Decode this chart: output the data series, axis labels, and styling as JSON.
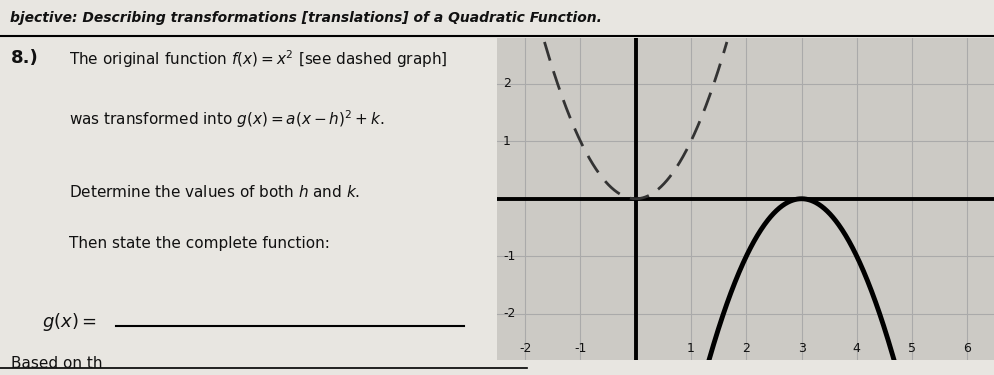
{
  "title_text": "bjective: Describing transformations [translations] of a Quadratic Function.",
  "problem_number": "8.)",
  "line1": "The original function $f(x) = x^2$ [see dashed graph]",
  "line2": "was transformed into $g(x) = a(x - h)^2 + k$.",
  "line3": "Determine the values of both $h$ and $k$.",
  "line4": "Then state the complete function:",
  "gx_label": "$g(x) =$",
  "paper_color": "#e8e6e1",
  "grid_bg": "#cccac5",
  "x_min": -2.5,
  "x_max": 6.5,
  "y_min": -2.8,
  "y_max": 2.8,
  "x_ticks": [
    -2,
    -1,
    0,
    1,
    2,
    3,
    4,
    5,
    6
  ],
  "y_ticks": [
    -2,
    -1,
    1,
    2
  ],
  "axis_color": "#000000",
  "grid_color": "#aaaaaa",
  "dashed_color": "#333333",
  "solid_color": "#000000",
  "text_color": "#111111"
}
